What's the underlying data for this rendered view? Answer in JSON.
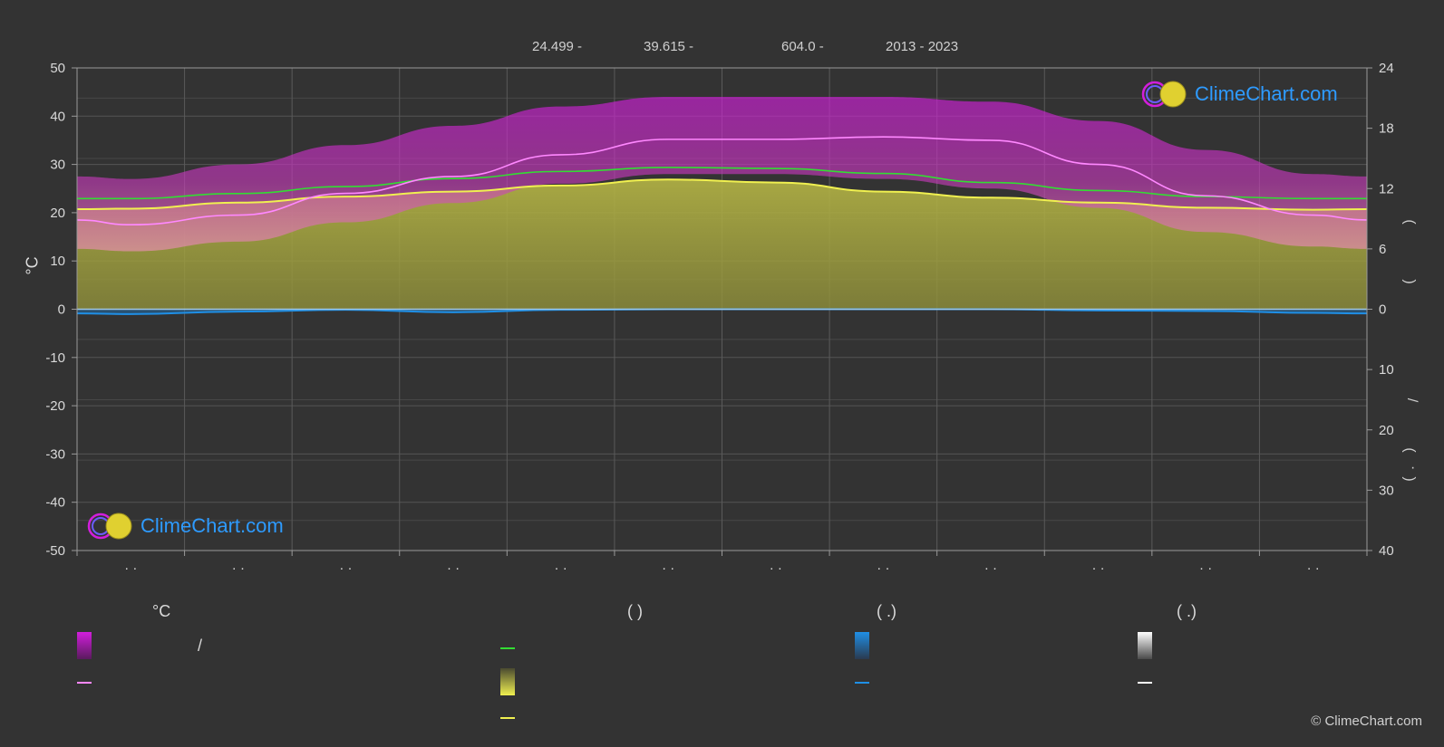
{
  "header": {
    "lat": "24.499 -",
    "lon": "39.615 -",
    "elevation": "604.0 -",
    "years": "2013 - 2023"
  },
  "left_unit": "°C",
  "right_marks": {
    "paren_open": "(",
    "paren_close": ")",
    "slash": "/",
    "dot": "·"
  },
  "logo_text": "ClimeChart.com",
  "legend": {
    "temp_header": "°C",
    "col2_header": "(          )",
    "col3_header": "(   .)",
    "col4_header": "(   .)",
    "slash": "/"
  },
  "copyright": "© ClimeChart.com",
  "colors": {
    "background": "#333333",
    "temp_band": "#d21edc",
    "sunshine_band": "#a6a640",
    "daylight_line": "#33dd33",
    "sunshine_line": "#f0f050",
    "max_temp_line": "#ff88ff",
    "precip": "#1f8fe6",
    "snow": "#ffffff",
    "brand_blue": "#2e9bff"
  },
  "chart_data": {
    "type": "area",
    "y_left": {
      "label": "°C",
      "min": -50,
      "max": 50,
      "ticks": [
        50,
        40,
        30,
        20,
        10,
        0,
        -10,
        -20,
        -30,
        -40,
        -50
      ]
    },
    "y_right_top": {
      "min": 0,
      "max": 24,
      "ticks": [
        24,
        18,
        12,
        6,
        0
      ]
    },
    "y_right_bottom": {
      "min": 0,
      "max": 40,
      "ticks": [
        0,
        10,
        20,
        30,
        40
      ]
    },
    "month_tick_labels": [
      "· ·",
      "· ·",
      "· ·",
      "· ·",
      "· ·",
      "· ·",
      "· ·",
      "· ·",
      "· ·",
      "· ·",
      "· ·",
      "· ·"
    ],
    "series": [
      {
        "kind": "band",
        "axis": "left",
        "upper": [
          27,
          30,
          34,
          38,
          42,
          44,
          44,
          44,
          43,
          39,
          33,
          28
        ],
        "lower": [
          12,
          14,
          18,
          22,
          26,
          28,
          28,
          27,
          25,
          21,
          16,
          13
        ]
      },
      {
        "kind": "line",
        "axis": "left",
        "values": [
          17.5,
          19.5,
          24,
          27.5,
          32,
          35.2,
          35.2,
          35.7,
          35,
          30,
          23.5,
          19.5
        ]
      },
      {
        "kind": "line",
        "axis": "right_top",
        "values": [
          11,
          11.5,
          12.2,
          13,
          13.7,
          14.1,
          14,
          13.5,
          12.6,
          11.8,
          11.2,
          11
        ]
      },
      {
        "kind": "area",
        "axis": "right_top",
        "values": [
          10,
          10.6,
          11.2,
          11.7,
          12.3,
          12.9,
          12.6,
          11.7,
          11.1,
          10.6,
          10.1,
          9.9
        ]
      },
      {
        "kind": "line",
        "axis": "right_top",
        "values": [
          10,
          10.6,
          11.2,
          11.7,
          12.3,
          12.9,
          12.6,
          11.7,
          11.1,
          10.6,
          10.1,
          9.9
        ]
      },
      {
        "kind": "line",
        "axis": "right_bottom",
        "values": [
          0.8,
          0.4,
          0.1,
          0.5,
          0.1,
          0,
          0,
          0,
          0,
          0.2,
          0.3,
          0.6
        ]
      }
    ]
  }
}
